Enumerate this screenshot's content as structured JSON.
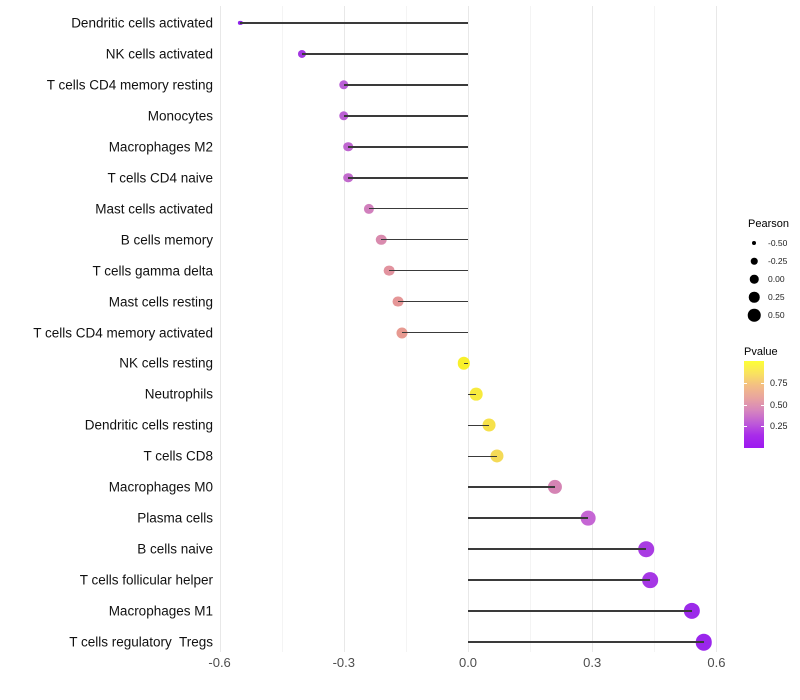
{
  "chart_data": {
    "type": "scatter",
    "subtype": "lollipop",
    "title": "",
    "xlabel": "",
    "ylabel": "",
    "xlim": [
      -0.61,
      0.64
    ],
    "x_ticks": [
      -0.6,
      -0.3,
      0.0,
      0.3,
      0.6
    ],
    "x_tick_labels": [
      "-0.6",
      "-0.3",
      "0.0",
      "0.3",
      "0.6"
    ],
    "x_minor_ticks": [
      -0.45,
      -0.15,
      0.15,
      0.45
    ],
    "grid": "on",
    "stem_color": "#3a3a3a",
    "points": [
      {
        "label": "Dendritic cells activated",
        "pearson": -0.55,
        "color": "#8F23EB"
      },
      {
        "label": "NK cells activated",
        "pearson": -0.4,
        "color": "#A438E2"
      },
      {
        "label": "T cells CD4 memory resting",
        "pearson": -0.3,
        "color": "#B95ED6"
      },
      {
        "label": "Monocytes",
        "pearson": -0.3,
        "color": "#BB60D4"
      },
      {
        "label": "Macrophages M2",
        "pearson": -0.29,
        "color": "#BF66D0"
      },
      {
        "label": "T cells CD4 naive",
        "pearson": -0.29,
        "color": "#C26BCD"
      },
      {
        "label": "Mast cells activated",
        "pearson": -0.24,
        "color": "#D180BD"
      },
      {
        "label": "B cells memory",
        "pearson": -0.21,
        "color": "#D98BAE"
      },
      {
        "label": "T cells gamma delta",
        "pearson": -0.19,
        "color": "#E2939F"
      },
      {
        "label": "Mast cells resting",
        "pearson": -0.17,
        "color": "#E59697"
      },
      {
        "label": "T cells CD4 memory activated",
        "pearson": -0.16,
        "color": "#E79A91"
      },
      {
        "label": "NK cells resting",
        "pearson": -0.01,
        "color": "#F8F02B"
      },
      {
        "label": "Neutrophils",
        "pearson": 0.02,
        "color": "#F7EA3E"
      },
      {
        "label": "Dendritic cells resting",
        "pearson": 0.05,
        "color": "#F6E14B"
      },
      {
        "label": "T cells CD8",
        "pearson": 0.07,
        "color": "#F4DA57"
      },
      {
        "label": "Macrophages M0",
        "pearson": 0.21,
        "color": "#D584B4"
      },
      {
        "label": "Plasma cells",
        "pearson": 0.29,
        "color": "#C566D4"
      },
      {
        "label": "B cells naive",
        "pearson": 0.43,
        "color": "#A93CE3"
      },
      {
        "label": "T cells follicular helper",
        "pearson": 0.44,
        "color": "#A637E5"
      },
      {
        "label": "Macrophages M1",
        "pearson": 0.54,
        "color": "#9C2BEA"
      },
      {
        "label": "T cells regulatory  Tregs",
        "pearson": 0.57,
        "color": "#9A26EC"
      }
    ],
    "legend_size": {
      "title": "Pearson",
      "entries": [
        {
          "label": "-0.50",
          "diameter": 4
        },
        {
          "label": "-0.25",
          "diameter": 6.5
        },
        {
          "label": "0.00",
          "diameter": 8.5
        },
        {
          "label": "0.25",
          "diameter": 10.5
        },
        {
          "label": "0.50",
          "diameter": 12.5
        }
      ]
    },
    "legend_color": {
      "title": "Pvalue",
      "tick_labels": [
        "0.75",
        "0.50",
        "0.25"
      ],
      "tick_values": [
        0.75,
        0.5,
        0.25
      ],
      "gradient_top_to_bottom": [
        "#FDFF35",
        "#F9E260",
        "#F3BD85",
        "#E8A3A0",
        "#D685BE",
        "#BE5BD8",
        "#A82BEA",
        "#9D19F0"
      ]
    }
  }
}
